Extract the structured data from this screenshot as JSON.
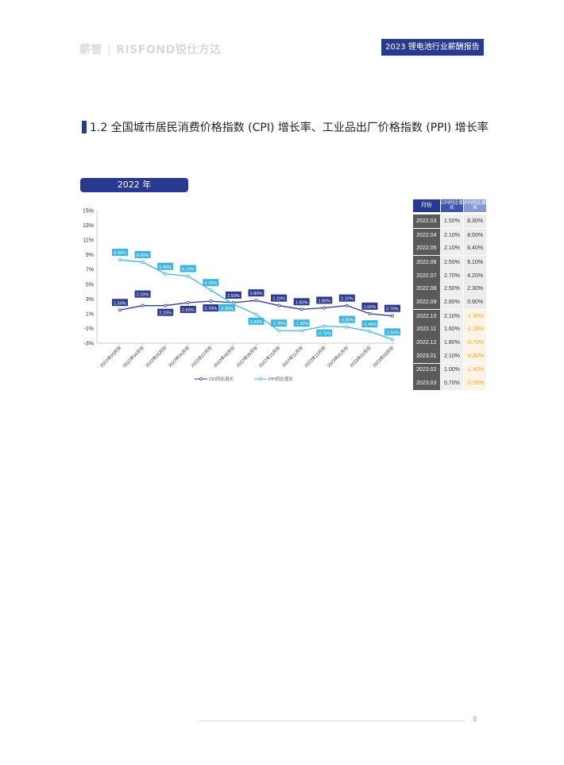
{
  "header": {
    "logo_text": "薪智",
    "logo_brand": "RISFOND锐仕方达",
    "report_tag": "2023 锂电池行业薪酬报告"
  },
  "section": {
    "title": "1.2 全国城市居民消费价格指数 (CPI) 增长率、工业品出厂价格指数 (PPI) 增长率"
  },
  "year_label": "2022 年",
  "chart_data": {
    "type": "line",
    "categories": [
      "2022年03月份",
      "2022年04月份",
      "2022年05月份",
      "2022年06月份",
      "2022年07月份",
      "2022年08月份",
      "2022年09月份",
      "2022年10月份",
      "2022年11月份",
      "2022年12月份",
      "2023年01月份",
      "2023年02月份",
      "2023年03月份"
    ],
    "series": [
      {
        "name": "CPI同比增长",
        "color": "#2e3a8c",
        "values": [
          1.5,
          2.1,
          2.1,
          2.5,
          2.7,
          2.5,
          2.8,
          2.1,
          1.6,
          1.8,
          2.1,
          1.0,
          0.7
        ],
        "labels": [
          "1.50%",
          "2.10%",
          "2.10%",
          "2.50%",
          "2.70%",
          "2.50%",
          "2.80%",
          "2.10%",
          "1.60%",
          "1.80%",
          "2.10%",
          "1.00%",
          "0.70%"
        ]
      },
      {
        "name": "PPI同比增长",
        "color": "#3cb4dc",
        "values": [
          8.3,
          8.0,
          6.4,
          6.1,
          4.2,
          2.3,
          0.9,
          -1.3,
          -1.3,
          -0.7,
          -0.8,
          -1.4,
          -2.5
        ],
        "labels": [
          "8.30%",
          "8.00%",
          "6.40%",
          "6.10%",
          "4.20%",
          "2.30%",
          "0.90%",
          "-1.30%",
          "-1.30%",
          "-0.70%",
          "-0.80%",
          "-1.40%",
          "-2.50%"
        ]
      }
    ],
    "yticks": [
      "15%",
      "13%",
      "11%",
      "9%",
      "7%",
      "5%",
      "3%",
      "1%",
      "-1%",
      "-3%"
    ],
    "ylim": [
      -3,
      15
    ],
    "legend": "bottom"
  },
  "table": {
    "headers": [
      "月份",
      "CPI同比增长",
      "PPI同比增长"
    ],
    "rows": [
      [
        "2022.03",
        "1.50%",
        "8.30%"
      ],
      [
        "2022.04",
        "2.10%",
        "8.00%"
      ],
      [
        "2022.05",
        "2.10%",
        "6.40%"
      ],
      [
        "2022.06",
        "2.50%",
        "6.10%"
      ],
      [
        "2022.07",
        "2.70%",
        "4.20%"
      ],
      [
        "2022.08",
        "2.50%",
        "2.30%"
      ],
      [
        "2022.09",
        "2.80%",
        "0.90%"
      ],
      [
        "2022.10",
        "2.10%",
        "-1.30%"
      ],
      [
        "2022.11",
        "1.60%",
        "-1.30%"
      ],
      [
        "2022.12",
        "1.80%",
        "-0.70%"
      ],
      [
        "2023.01",
        "2.10%",
        "-0.80%"
      ],
      [
        "2023.02",
        "1.00%",
        "-1.40%"
      ],
      [
        "2023.03",
        "0.70%",
        "-2.50%"
      ]
    ]
  },
  "footer": {
    "page_number": "8"
  }
}
